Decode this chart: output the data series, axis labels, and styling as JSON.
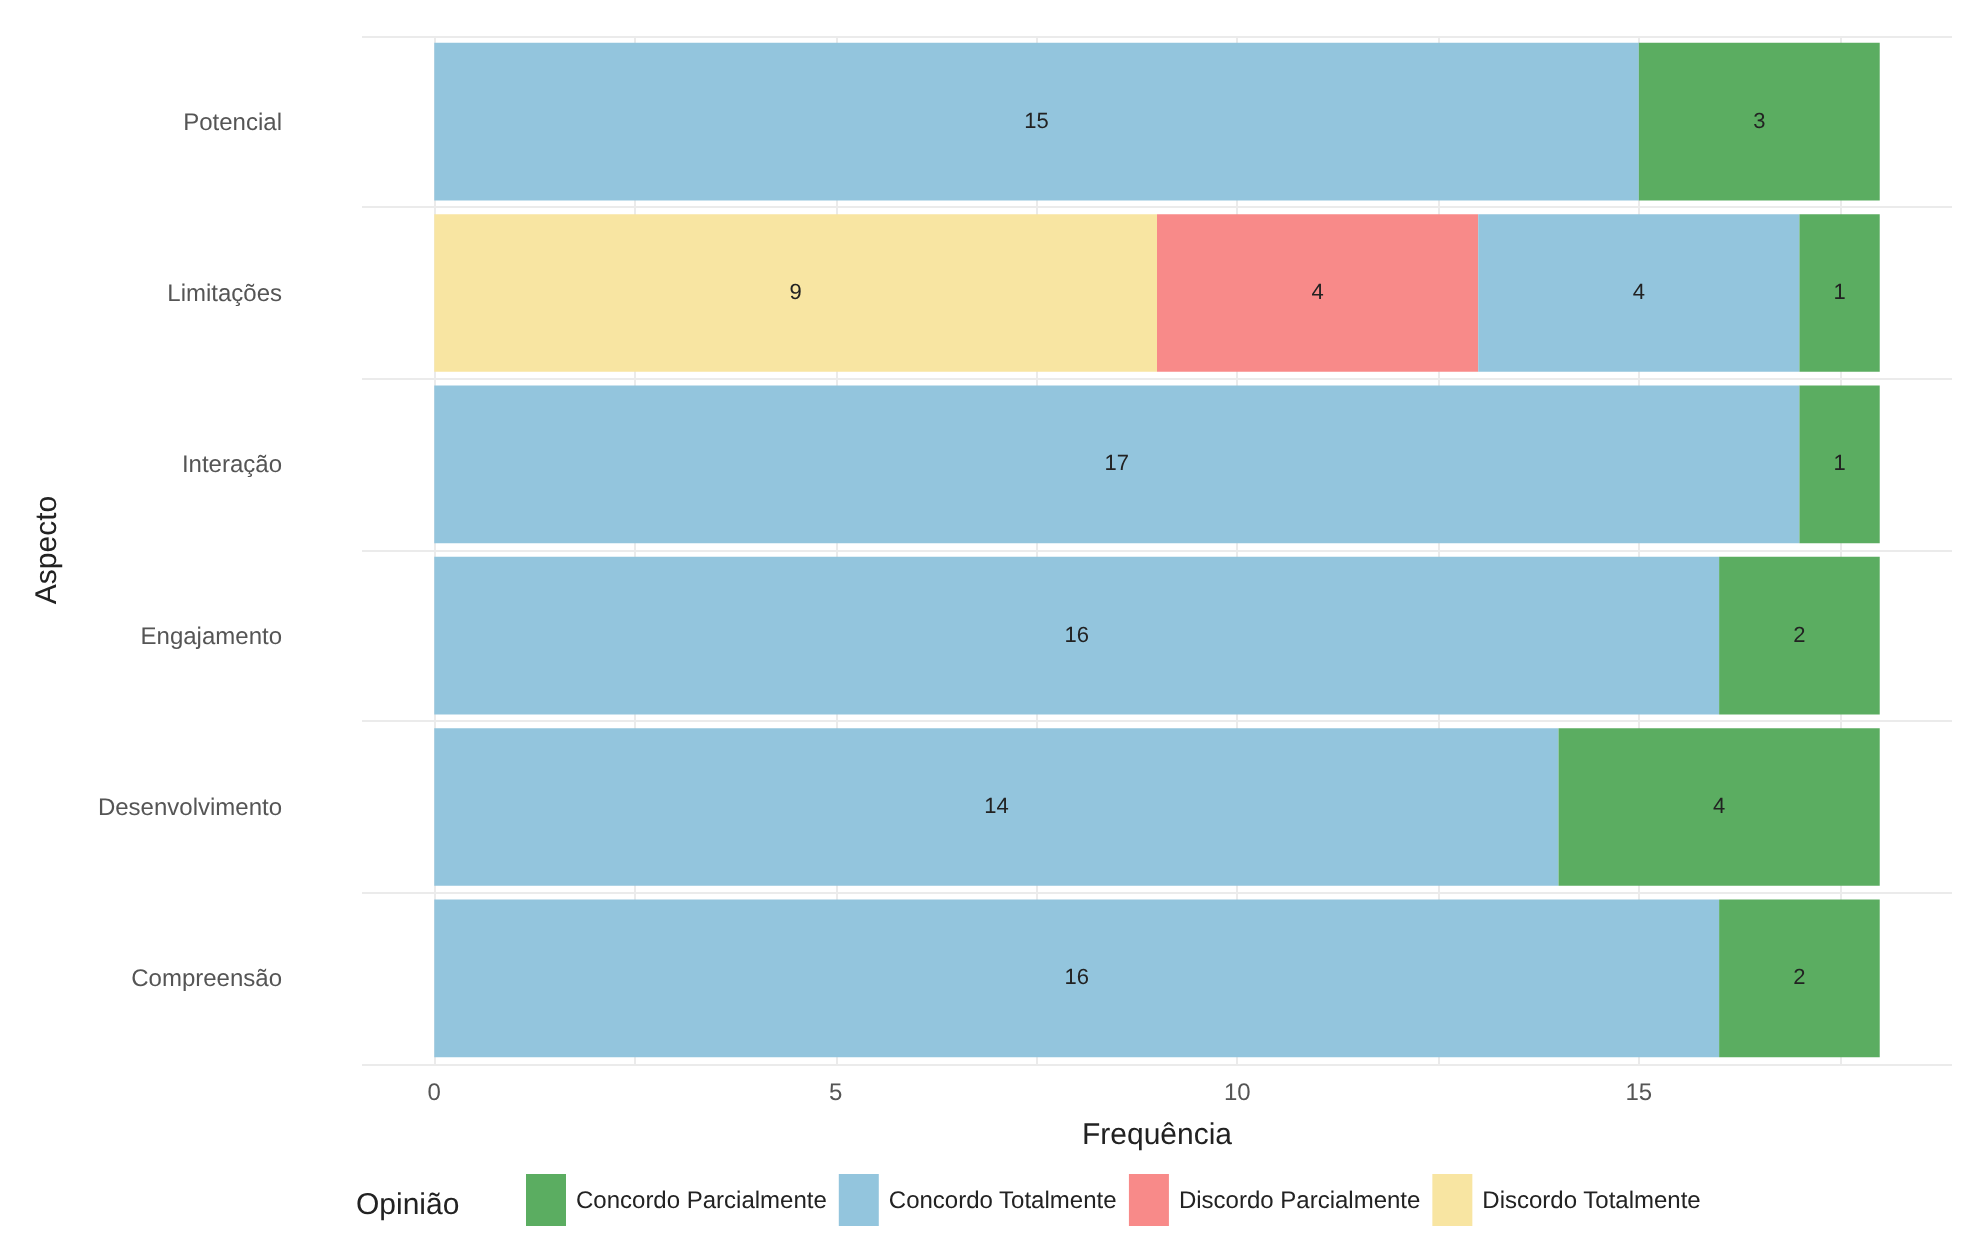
{
  "chart_data": {
    "type": "bar",
    "orientation": "horizontal",
    "stacked": true,
    "xlabel": "Frequência",
    "ylabel": "Aspecto",
    "legend_title": "Opinião",
    "categories": [
      "Potencial",
      "Limitações",
      "Interação",
      "Engajamento",
      "Desenvolvimento",
      "Compreensão"
    ],
    "series": [
      {
        "name": "Discordo Totalmente",
        "color": "#f8e5a2",
        "values": [
          null,
          9,
          null,
          null,
          null,
          null
        ]
      },
      {
        "name": "Discordo Parcialmente",
        "color": "#f88a89",
        "values": [
          null,
          4,
          null,
          null,
          null,
          null
        ]
      },
      {
        "name": "Concordo Totalmente",
        "color": "#93c5dd",
        "values": [
          15,
          4,
          17,
          16,
          14,
          16
        ]
      },
      {
        "name": "Concordo Parcialmente",
        "color": "#5bad61",
        "values": [
          3,
          1,
          1,
          2,
          4,
          2
        ]
      }
    ],
    "xlim": [
      -0.9,
      18.9
    ],
    "xticks": [
      0,
      {
        "value": 2.5,
        "label": null
      },
      5,
      {
        "value": 7.5,
        "label": null
      },
      10,
      {
        "value": 12.5,
        "label": null
      },
      15,
      {
        "value": 17.5,
        "label": null
      }
    ],
    "data_labels": true,
    "grid": true,
    "legend": "bottom"
  }
}
